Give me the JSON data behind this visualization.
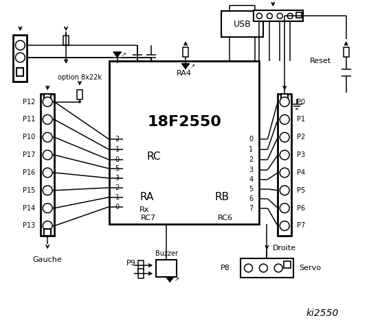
{
  "chip_label": "18F2550",
  "ra4_label": "RA4",
  "rc_label": "RC",
  "ra_label": "RA",
  "rb_label": "RB",
  "rc6_label": "RC6",
  "rc7_label": "RC7",
  "rx_label": "Rx",
  "usb_label": "USB",
  "reset_label": "Reset",
  "gauche_label": "Gauche",
  "droite_label": "Droite",
  "servo_label": "Servo",
  "buzzer_label": "Buzzer",
  "p8_label": "P8",
  "p9_label": "P9",
  "option_label": "option 8x22k",
  "ki_label": "ki2550",
  "left_pins": [
    "P12",
    "P11",
    "P10",
    "P17",
    "P16",
    "P15",
    "P14",
    "P13"
  ],
  "right_pins": [
    "P0",
    "P1",
    "P2",
    "P3",
    "P4",
    "P5",
    "P6",
    "P7"
  ],
  "rc_pins": [
    "2",
    "1",
    "0"
  ],
  "ra_pins": [
    "5",
    "3",
    "2",
    "1",
    "0"
  ],
  "rb_pins": [
    "0",
    "1",
    "2",
    "3",
    "4",
    "5",
    "6",
    "7"
  ]
}
